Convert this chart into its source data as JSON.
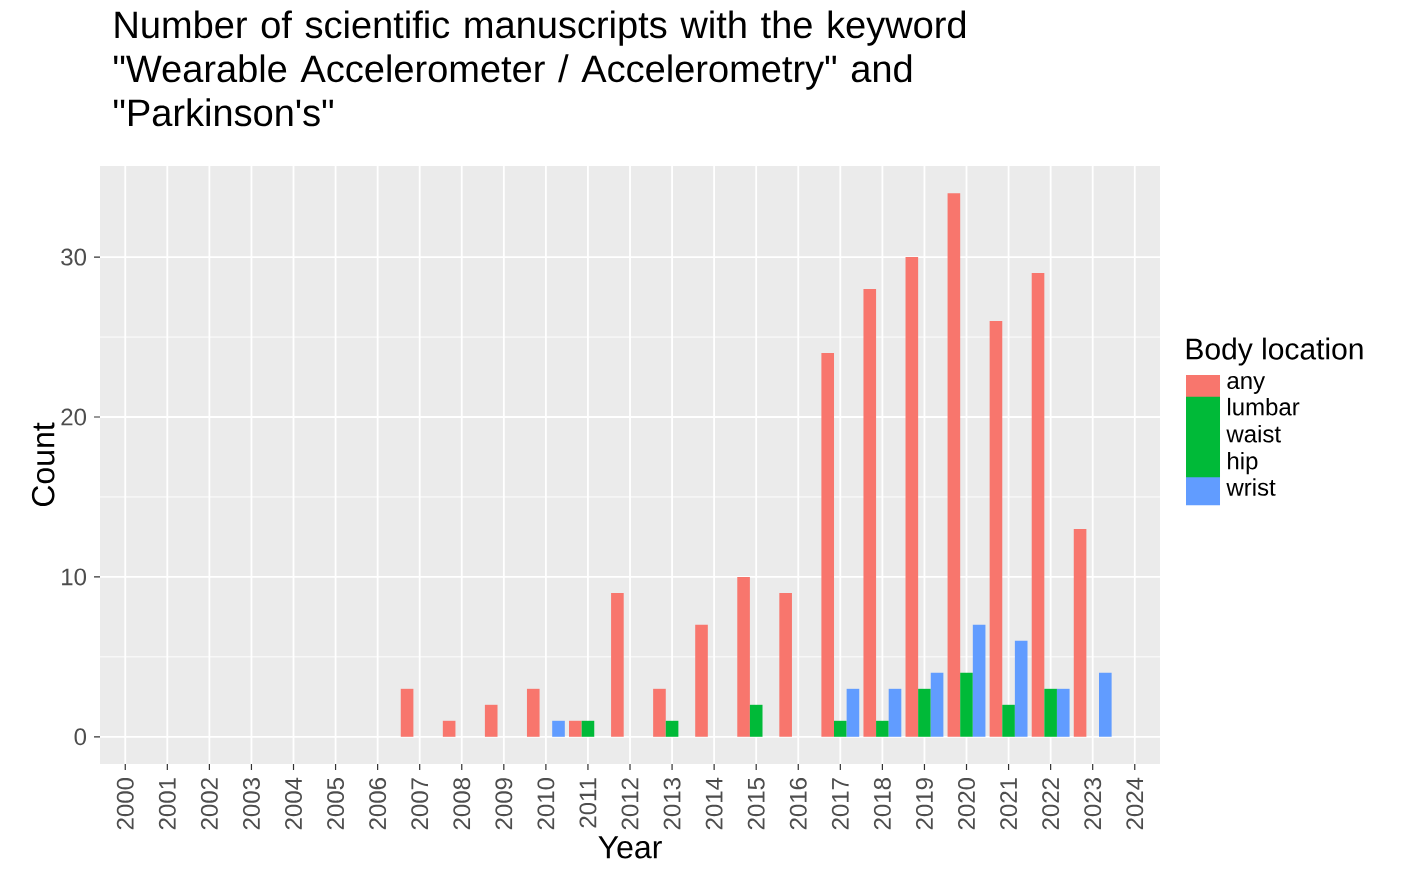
{
  "chart_data": {
    "type": "bar",
    "title": "Number of scientific manuscripts with the keyword \"Wearable Accelerometer / Accelerometry\" and \"Parkinson's\"",
    "xlabel": "Year",
    "ylabel": "Count",
    "legend_title": "Body location",
    "categories": [
      "2000",
      "2001",
      "2002",
      "2003",
      "2004",
      "2005",
      "2006",
      "2007",
      "2008",
      "2009",
      "2010",
      "2011",
      "2012",
      "2013",
      "2014",
      "2015",
      "2016",
      "2017",
      "2018",
      "2019",
      "2020",
      "2021",
      "2022",
      "2023",
      "2024"
    ],
    "series": [
      {
        "name": "any",
        "color": "#f8766d",
        "values": [
          null,
          null,
          null,
          null,
          null,
          null,
          null,
          3,
          1,
          2,
          3,
          1,
          9,
          3,
          7,
          10,
          9,
          24,
          28,
          30,
          34,
          26,
          29,
          13,
          null
        ]
      },
      {
        "name": "lumbar waist hip",
        "color": "#00ba38",
        "values": [
          null,
          null,
          null,
          null,
          null,
          null,
          null,
          null,
          null,
          null,
          null,
          1,
          null,
          1,
          null,
          2,
          null,
          1,
          1,
          3,
          4,
          2,
          3,
          null,
          null
        ]
      },
      {
        "name": "wrist",
        "color": "#619cff",
        "values": [
          null,
          null,
          null,
          null,
          null,
          null,
          null,
          null,
          null,
          null,
          1,
          null,
          null,
          null,
          null,
          null,
          null,
          3,
          3,
          4,
          7,
          6,
          3,
          4,
          null
        ]
      }
    ],
    "ylim": [
      -1.7,
      35.7
    ],
    "yticks": [
      0,
      10,
      20,
      30
    ],
    "grid": true,
    "legend": "right"
  }
}
